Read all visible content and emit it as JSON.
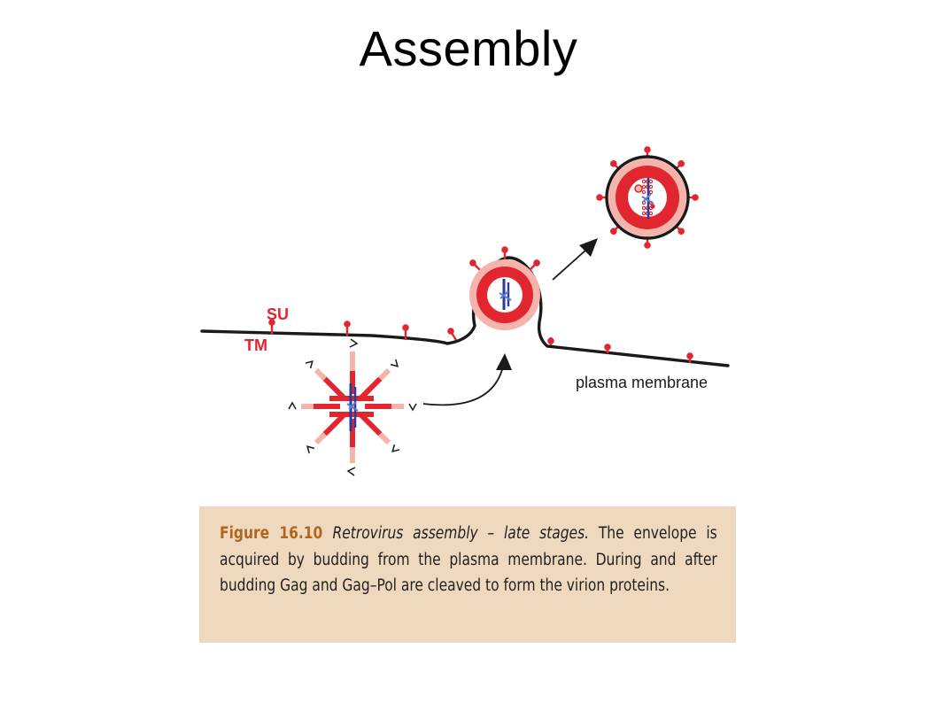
{
  "slide": {
    "title": "Assembly"
  },
  "diagram": {
    "labels": {
      "su": "SU",
      "tm": "TM",
      "membrane": "plasma membrane"
    },
    "colors": {
      "envelope_red": "#e1262f",
      "envelope_pink": "#f4b4ab",
      "rna_blue": "#2b3b9b",
      "light_blue": "#5a7ccd",
      "membrane": "#1a1a1a",
      "arrow": "#1a1a1a"
    }
  },
  "caption": {
    "figure_number": "Figure 16.10",
    "figure_title": "Retrovirus assembly – late stages.",
    "body": "The envelope is acquired by budding from the plasma membrane. During and after budding Gag and Gag–Pol are cleaved to form the virion proteins.",
    "background": "#efd9be",
    "number_color": "#b1661e"
  }
}
